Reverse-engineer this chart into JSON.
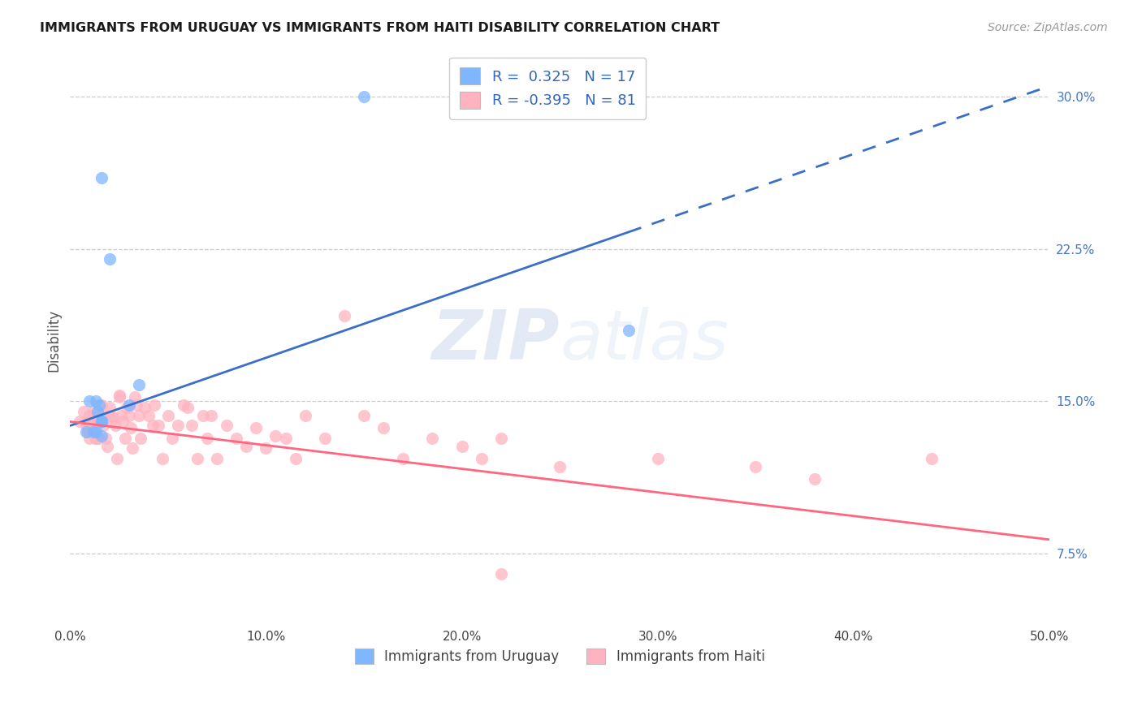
{
  "title": "IMMIGRANTS FROM URUGUAY VS IMMIGRANTS FROM HAITI DISABILITY CORRELATION CHART",
  "source": "Source: ZipAtlas.com",
  "ylabel": "Disability",
  "xlim": [
    0.0,
    0.5
  ],
  "ylim": [
    0.04,
    0.32
  ],
  "xticks": [
    0.0,
    0.1,
    0.2,
    0.3,
    0.4,
    0.5
  ],
  "yticks": [
    0.075,
    0.15,
    0.225,
    0.3
  ],
  "ytick_labels": [
    "7.5%",
    "15.0%",
    "22.5%",
    "30.0%"
  ],
  "xtick_labels": [
    "0.0%",
    "10.0%",
    "20.0%",
    "30.0%",
    "40.0%",
    "50.0%"
  ],
  "r_uruguay": 0.325,
  "n_uruguay": 17,
  "r_haiti": -0.395,
  "n_haiti": 81,
  "color_uruguay": "#7EB6FF",
  "color_haiti": "#FFB3C1",
  "color_trend_uruguay": "#3A6EC8",
  "color_trend_haiti": "#FF6680",
  "watermark_zip": "ZIP",
  "watermark_atlas": "atlas",
  "legend1_label": "R =  0.325   N = 17",
  "legend2_label": "R = -0.395   N = 81",
  "legend_bottom1": "Immigrants from Uruguay",
  "legend_bottom2": "Immigrants from Haiti",
  "trend_uruguay_x0": 0.0,
  "trend_uruguay_y0": 0.138,
  "trend_uruguay_x1": 0.5,
  "trend_uruguay_y1": 0.305,
  "trend_uruguay_solid_end": 0.285,
  "trend_haiti_x0": 0.0,
  "trend_haiti_y0": 0.14,
  "trend_haiti_x1": 0.5,
  "trend_haiti_y1": 0.082,
  "uruguay_x": [
    0.008,
    0.01,
    0.012,
    0.013,
    0.013,
    0.014,
    0.015,
    0.016,
    0.016,
    0.016,
    0.016,
    0.03,
    0.035,
    0.15,
    0.285,
    0.016,
    0.02
  ],
  "uruguay_y": [
    0.135,
    0.15,
    0.135,
    0.15,
    0.135,
    0.145,
    0.148,
    0.14,
    0.14,
    0.133,
    0.14,
    0.148,
    0.158,
    0.3,
    0.185,
    0.26,
    0.22
  ],
  "haiti_x": [
    0.005,
    0.007,
    0.008,
    0.009,
    0.01,
    0.01,
    0.01,
    0.01,
    0.011,
    0.012,
    0.012,
    0.013,
    0.013,
    0.013,
    0.014,
    0.015,
    0.016,
    0.016,
    0.017,
    0.018,
    0.019,
    0.02,
    0.02,
    0.021,
    0.022,
    0.023,
    0.024,
    0.025,
    0.025,
    0.026,
    0.027,
    0.028,
    0.029,
    0.03,
    0.031,
    0.032,
    0.033,
    0.034,
    0.035,
    0.036,
    0.038,
    0.04,
    0.042,
    0.043,
    0.045,
    0.047,
    0.05,
    0.052,
    0.055,
    0.058,
    0.06,
    0.062,
    0.065,
    0.068,
    0.07,
    0.072,
    0.075,
    0.08,
    0.085,
    0.09,
    0.095,
    0.1,
    0.105,
    0.11,
    0.115,
    0.12,
    0.13,
    0.14,
    0.15,
    0.16,
    0.17,
    0.185,
    0.2,
    0.21,
    0.22,
    0.25,
    0.3,
    0.35,
    0.38,
    0.44,
    0.22
  ],
  "haiti_y": [
    0.14,
    0.145,
    0.138,
    0.135,
    0.132,
    0.135,
    0.14,
    0.143,
    0.142,
    0.145,
    0.138,
    0.132,
    0.137,
    0.132,
    0.142,
    0.132,
    0.143,
    0.148,
    0.138,
    0.132,
    0.128,
    0.147,
    0.143,
    0.14,
    0.142,
    0.138,
    0.122,
    0.152,
    0.153,
    0.143,
    0.14,
    0.132,
    0.147,
    0.143,
    0.137,
    0.127,
    0.152,
    0.148,
    0.143,
    0.132,
    0.147,
    0.143,
    0.138,
    0.148,
    0.138,
    0.122,
    0.143,
    0.132,
    0.138,
    0.148,
    0.147,
    0.138,
    0.122,
    0.143,
    0.132,
    0.143,
    0.122,
    0.138,
    0.132,
    0.128,
    0.137,
    0.127,
    0.133,
    0.132,
    0.122,
    0.143,
    0.132,
    0.192,
    0.143,
    0.137,
    0.122,
    0.132,
    0.128,
    0.122,
    0.132,
    0.118,
    0.122,
    0.118,
    0.112,
    0.122,
    0.065
  ]
}
